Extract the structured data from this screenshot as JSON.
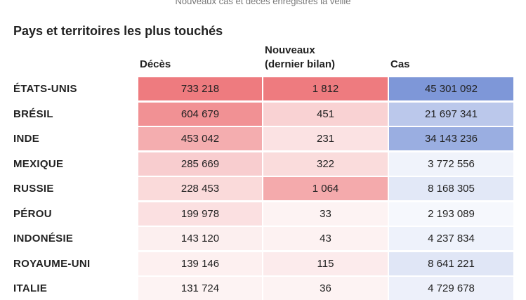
{
  "header": {
    "subtitle": "Nouveaux cas et décès enregistrés la veille",
    "section_title": "Pays et territoires les plus touchés"
  },
  "colors": {
    "red_strong": "#ee7b7f",
    "red_light": "#fdf3f3",
    "blue_strong": "#7e97d8",
    "blue_light": "#f6f8fd"
  },
  "chart_data": {
    "type": "table",
    "title": "Pays et territoires les plus touchés",
    "subtitle": "Nouveaux cas et décès enregistrés la veille",
    "columns": [
      "Décès",
      "Nouveaux\n(dernier bilan)",
      "Cas"
    ],
    "column_labels": {
      "deces": "Décès",
      "nouveaux_line1": "Nouveaux",
      "nouveaux_line2": "(dernier bilan)",
      "cas": "Cas"
    },
    "rows": [
      {
        "country": "ÉTATS-UNIS",
        "deces": "733 218",
        "nouveaux": "1 812",
        "cas": "45 301 092",
        "deces_value": 733218,
        "nouveaux_value": 1812,
        "cas_value": 45301092
      },
      {
        "country": "BRÉSIL",
        "deces": "604 679",
        "nouveaux": "451",
        "cas": "21 697 341",
        "deces_value": 604679,
        "nouveaux_value": 451,
        "cas_value": 21697341
      },
      {
        "country": "INDE",
        "deces": "453 042",
        "nouveaux": "231",
        "cas": "34 143 236",
        "deces_value": 453042,
        "nouveaux_value": 231,
        "cas_value": 34143236
      },
      {
        "country": "MEXIQUE",
        "deces": "285 669",
        "nouveaux": "322",
        "cas": "3 772 556",
        "deces_value": 285669,
        "nouveaux_value": 322,
        "cas_value": 3772556
      },
      {
        "country": "RUSSIE",
        "deces": "228 453",
        "nouveaux": "1 064",
        "cas": "8 168 305",
        "deces_value": 228453,
        "nouveaux_value": 1064,
        "cas_value": 8168305
      },
      {
        "country": "PÉROU",
        "deces": "199 978",
        "nouveaux": "33",
        "cas": "2 193 089",
        "deces_value": 199978,
        "nouveaux_value": 33,
        "cas_value": 2193089
      },
      {
        "country": "INDONÉSIE",
        "deces": "143 120",
        "nouveaux": "43",
        "cas": "4 237 834",
        "deces_value": 143120,
        "nouveaux_value": 43,
        "cas_value": 4237834
      },
      {
        "country": "ROYAUME-UNI",
        "deces": "139 146",
        "nouveaux": "115",
        "cas": "8 641 221",
        "deces_value": 139146,
        "nouveaux_value": 115,
        "cas_value": 8641221
      },
      {
        "country": "ITALIE",
        "deces": "131 724",
        "nouveaux": "36",
        "cas": "4 729 678",
        "deces_value": 131724,
        "nouveaux_value": 36,
        "cas_value": 4729678
      }
    ]
  }
}
